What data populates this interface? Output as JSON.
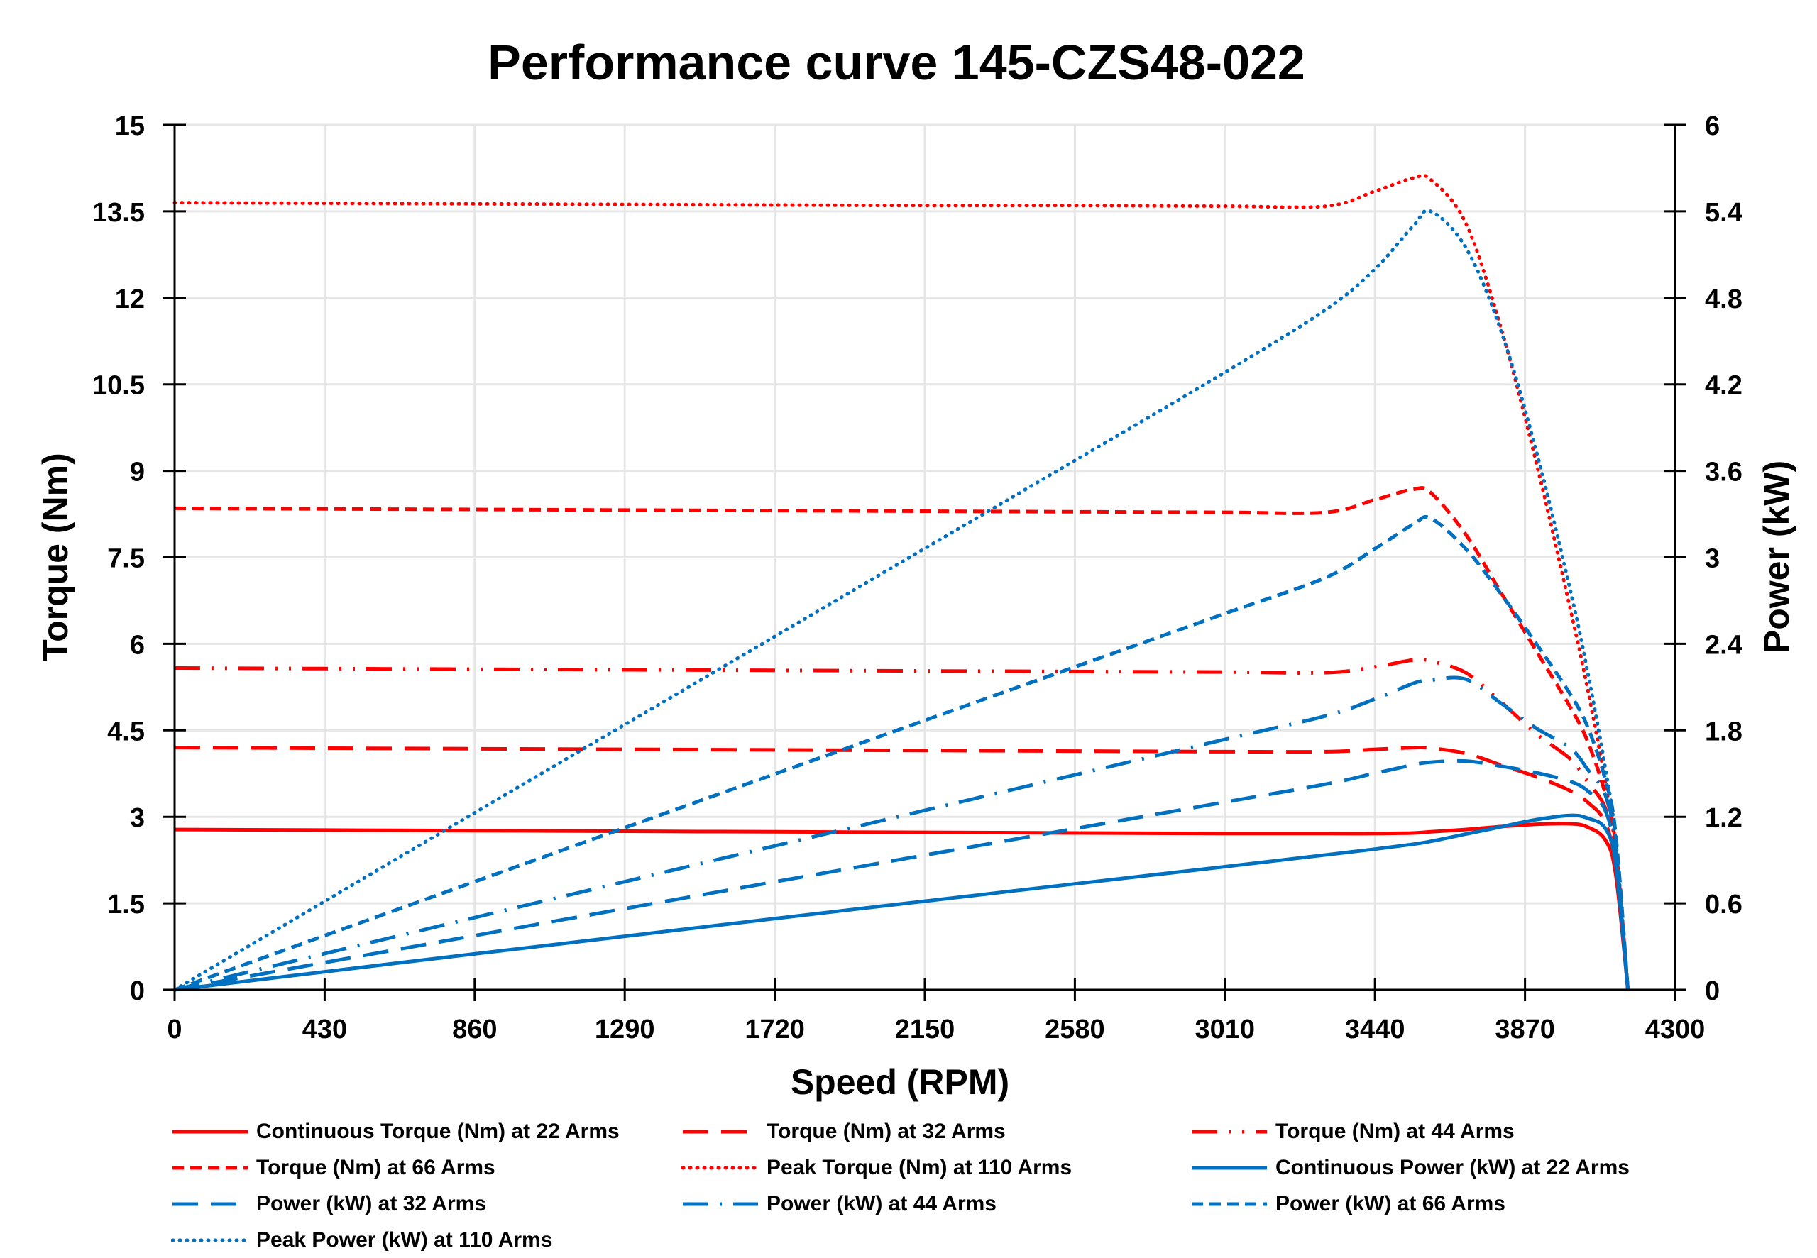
{
  "chart_data": {
    "type": "line",
    "title": "Performance curve 145-CZS48-022",
    "xlabel": "Speed (RPM)",
    "ylabel": "Torque (Nm)",
    "y2label": "Power (kW)",
    "xlim": [
      0,
      4300
    ],
    "ylim": [
      0,
      15
    ],
    "y2lim": [
      0,
      6
    ],
    "xticks": [
      "0",
      "430",
      "860",
      "1290",
      "1720",
      "2150",
      "2580",
      "3010",
      "3440",
      "3870",
      "4300"
    ],
    "yticks": [
      "0",
      "1.5",
      "3",
      "4.5",
      "6",
      "7.5",
      "9",
      "10.5",
      "12",
      "13.5",
      "15"
    ],
    "y2ticks": [
      "0",
      "0.6",
      "1.2",
      "1.8",
      "2.4",
      "3",
      "3.6",
      "4.2",
      "4.8",
      "5.4",
      "6"
    ],
    "grid": true,
    "legend_position": "bottom",
    "colors": {
      "torque": "#FF0000",
      "power": "#0070C0"
    },
    "x": [
      0,
      430,
      860,
      1290,
      1720,
      2150,
      2580,
      3010,
      3300,
      3440,
      3550,
      3600,
      3700,
      3800,
      3900,
      4000,
      4050,
      4100,
      4130,
      4165
    ],
    "series": [
      {
        "name": "Continuous Torque (Nm) at 22 Arms",
        "axis": "left",
        "color": "#FF0000",
        "style": "solid",
        "values": [
          2.78,
          2.77,
          2.76,
          2.75,
          2.74,
          2.73,
          2.72,
          2.71,
          2.71,
          2.71,
          2.72,
          2.74,
          2.78,
          2.83,
          2.87,
          2.88,
          2.82,
          2.6,
          2.0,
          0
        ]
      },
      {
        "name": "Torque (Nm) at 32 Arms",
        "axis": "left",
        "color": "#FF0000",
        "style": "long-dash",
        "values": [
          4.2,
          4.19,
          4.18,
          4.17,
          4.16,
          4.15,
          4.14,
          4.13,
          4.13,
          4.17,
          4.2,
          4.19,
          4.1,
          3.9,
          3.7,
          3.45,
          3.25,
          2.9,
          2.1,
          0
        ]
      },
      {
        "name": "Torque (Nm) at 44 Arms",
        "axis": "left",
        "color": "#FF0000",
        "style": "long-dash-dot-dot",
        "values": [
          5.58,
          5.57,
          5.56,
          5.55,
          5.54,
          5.53,
          5.52,
          5.51,
          5.5,
          5.6,
          5.72,
          5.7,
          5.5,
          5.0,
          4.45,
          4.0,
          3.6,
          3.15,
          2.3,
          0
        ]
      },
      {
        "name": "Torque (Nm) at 66 Arms",
        "axis": "left",
        "color": "#FF0000",
        "style": "dash",
        "values": [
          8.35,
          8.34,
          8.33,
          8.32,
          8.31,
          8.3,
          8.29,
          8.28,
          8.28,
          8.5,
          8.68,
          8.62,
          7.9,
          6.9,
          5.9,
          4.9,
          4.3,
          3.4,
          2.5,
          0
        ]
      },
      {
        "name": "Peak Torque (Nm) at 110 Arms",
        "axis": "left",
        "color": "#FF0000",
        "style": "dot",
        "values": [
          13.65,
          13.64,
          13.63,
          13.62,
          13.61,
          13.6,
          13.6,
          13.59,
          13.59,
          13.85,
          14.08,
          14.05,
          13.3,
          11.5,
          9.2,
          6.6,
          5.2,
          3.6,
          2.4,
          0
        ]
      },
      {
        "name": "Continuous Power (kW) at 22 Arms",
        "axis": "right",
        "color": "#0070C0",
        "style": "solid",
        "values": [
          0,
          0.125,
          0.249,
          0.371,
          0.494,
          0.615,
          0.735,
          0.854,
          0.936,
          0.976,
          1.01,
          1.03,
          1.08,
          1.13,
          1.18,
          1.21,
          1.19,
          1.12,
          0.87,
          0
        ]
      },
      {
        "name": "Power (kW) at 32 Arms",
        "axis": "right",
        "color": "#0070C0",
        "style": "long-dash",
        "values": [
          0,
          0.189,
          0.376,
          0.563,
          0.749,
          0.934,
          1.118,
          1.302,
          1.427,
          1.502,
          1.561,
          1.579,
          1.587,
          1.552,
          1.507,
          1.445,
          1.379,
          1.245,
          0.913,
          0
        ]
      },
      {
        "name": "Power (kW) at 44 Arms",
        "axis": "right",
        "color": "#0070C0",
        "style": "long-dash-dot",
        "values": [
          0,
          0.251,
          0.501,
          0.75,
          0.998,
          1.245,
          1.491,
          1.737,
          1.901,
          2.017,
          2.126,
          2.148,
          2.155,
          1.99,
          1.818,
          1.676,
          1.527,
          1.352,
          0.995,
          0
        ]
      },
      {
        "name": "Power (kW) at 66 Arms",
        "axis": "right",
        "color": "#0070C0",
        "style": "dash",
        "values": [
          0,
          0.376,
          0.75,
          1.124,
          1.497,
          1.869,
          2.24,
          2.61,
          2.861,
          3.06,
          3.23,
          3.27,
          3.06,
          2.75,
          2.41,
          2.05,
          1.82,
          1.46,
          1.08,
          0
        ]
      },
      {
        "name": "Peak Power (kW) at 110 Arms",
        "axis": "right",
        "color": "#0070C0",
        "style": "dot",
        "values": [
          0,
          0.614,
          1.228,
          1.84,
          2.451,
          3.062,
          3.672,
          4.283,
          4.72,
          5.0,
          5.3,
          5.4,
          5.15,
          4.58,
          3.76,
          2.77,
          2.2,
          1.54,
          1.04,
          0
        ]
      }
    ]
  }
}
